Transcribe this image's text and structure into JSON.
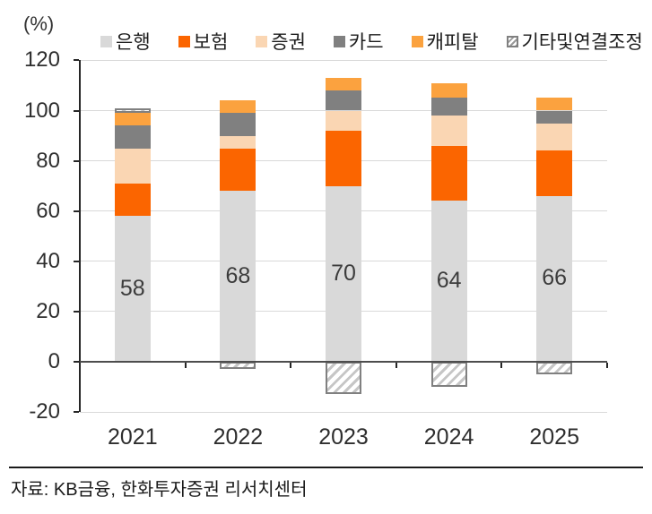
{
  "percent_label": "(%)",
  "source_text": "자료: KB금융, 한화투자증권 리서치센터",
  "chart_data": {
    "type": "bar",
    "stacked": true,
    "title": "",
    "xlabel": "",
    "ylabel": "(%)",
    "categories": [
      "2021",
      "2022",
      "2023",
      "2024",
      "2025"
    ],
    "series": [
      {
        "name": "은행",
        "color": "#D9D9D9",
        "values": [
          58,
          68,
          70,
          64,
          66
        ]
      },
      {
        "name": "보험",
        "color": "#FB6500",
        "values": [
          13,
          17,
          22,
          22,
          18
        ]
      },
      {
        "name": "증권",
        "color": "#FAD6B3",
        "values": [
          14,
          5,
          8,
          12,
          11
        ]
      },
      {
        "name": "카드",
        "color": "#808080",
        "values": [
          9,
          9,
          8,
          7,
          5
        ]
      },
      {
        "name": "캐피탈",
        "color": "#FBA23F",
        "values": [
          5,
          5,
          5,
          6,
          5
        ]
      },
      {
        "name": "기타및연결조정",
        "color": "hatch",
        "values": [
          2,
          -3,
          -13,
          -10,
          -5
        ]
      }
    ],
    "bar_labels": [
      "58",
      "68",
      "70",
      "64",
      "66"
    ],
    "ylim": [
      -20,
      120
    ],
    "ytick_step": 20,
    "grid": true,
    "legend_position": "top"
  },
  "style_colors": {
    "grid": "#D9D9D9",
    "zero_line": "#4D4D4D",
    "axis": "#262626",
    "hatch_border": "#808080",
    "hatch_line": "#C6C6C6",
    "label_text": "#3C3C3C"
  }
}
